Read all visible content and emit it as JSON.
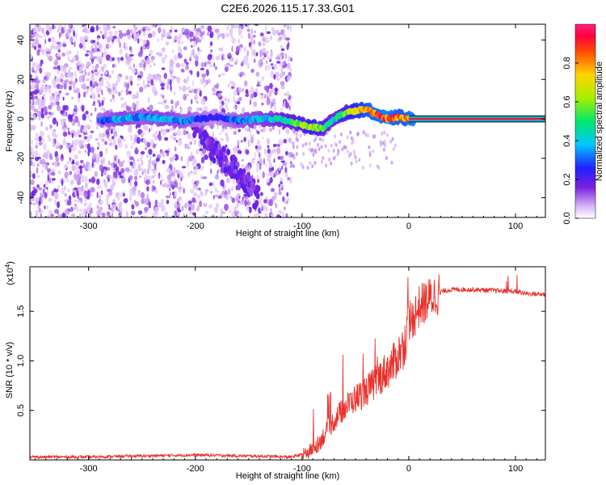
{
  "title": "C2E6.2026.115.17.33.G01",
  "chart_data": [
    {
      "type": "heatmap",
      "xlabel": "Height of straight line (km)",
      "ylabel": "Frequency (Hz)",
      "xlim": [
        -355,
        128
      ],
      "ylim": [
        -50,
        48
      ],
      "xticks": [
        -300,
        -200,
        -100,
        0,
        100
      ],
      "yticks": [
        -40,
        -20,
        0,
        20,
        40
      ],
      "colorbar": {
        "label": "Normalized spectral amplitude",
        "range": [
          0.0,
          1.0
        ],
        "ticks": [
          0.0,
          0.2,
          0.4,
          0.6,
          0.8
        ]
      },
      "ridge": {
        "x": [
          -290,
          -270,
          -250,
          -230,
          -210,
          -195,
          -180,
          -160,
          -140,
          -120,
          -100,
          -90,
          -80,
          -70,
          -60,
          -50,
          -40,
          -30,
          -20,
          -10,
          0,
          20,
          60,
          100,
          128
        ],
        "y": [
          -1,
          0,
          1,
          0,
          -1,
          0,
          1,
          -1,
          0,
          0,
          -3,
          -4,
          -5,
          0,
          3,
          4,
          5,
          2,
          0,
          1,
          0,
          0,
          0,
          0,
          0
        ],
        "amplitude": [
          0.3,
          0.4,
          0.35,
          0.4,
          0.35,
          0.3,
          0.25,
          0.35,
          0.4,
          0.45,
          0.6,
          0.7,
          0.55,
          0.45,
          0.6,
          0.75,
          0.85,
          0.9,
          0.95,
          0.85,
          0.9,
          1.0,
          1.0,
          1.0,
          1.0
        ]
      }
    },
    {
      "type": "line",
      "xlabel": "Height of straight line (km)",
      "ylabel": "SNR (10 * v/v)",
      "multiplier_label": "(x10",
      "multiplier_exp": "4",
      "multiplier_close": ")",
      "xlim": [
        -355,
        128
      ],
      "ylim": [
        0,
        1.95
      ],
      "xticks": [
        -300,
        -200,
        -100,
        0,
        100
      ],
      "yticks": [
        0.5,
        1.0,
        1.5
      ],
      "ytick_labels": [
        "0.5",
        "1.0",
        "1.5"
      ],
      "color": "#e8302a",
      "series": [
        {
          "x": [
            -355,
            -300,
            -250,
            -200,
            -150,
            -110,
            -95,
            -85,
            -75,
            -65,
            -55,
            -45,
            -35,
            -25,
            -15,
            -10,
            -5,
            0,
            10,
            20,
            30,
            40,
            60,
            80,
            100,
            110,
            128
          ],
          "y": [
            0.03,
            0.03,
            0.04,
            0.05,
            0.04,
            0.03,
            0.07,
            0.16,
            0.32,
            0.47,
            0.58,
            0.66,
            0.74,
            0.86,
            0.96,
            1.06,
            1.14,
            1.36,
            1.55,
            1.63,
            1.7,
            1.72,
            1.72,
            1.71,
            1.7,
            1.68,
            1.67
          ]
        }
      ]
    }
  ]
}
